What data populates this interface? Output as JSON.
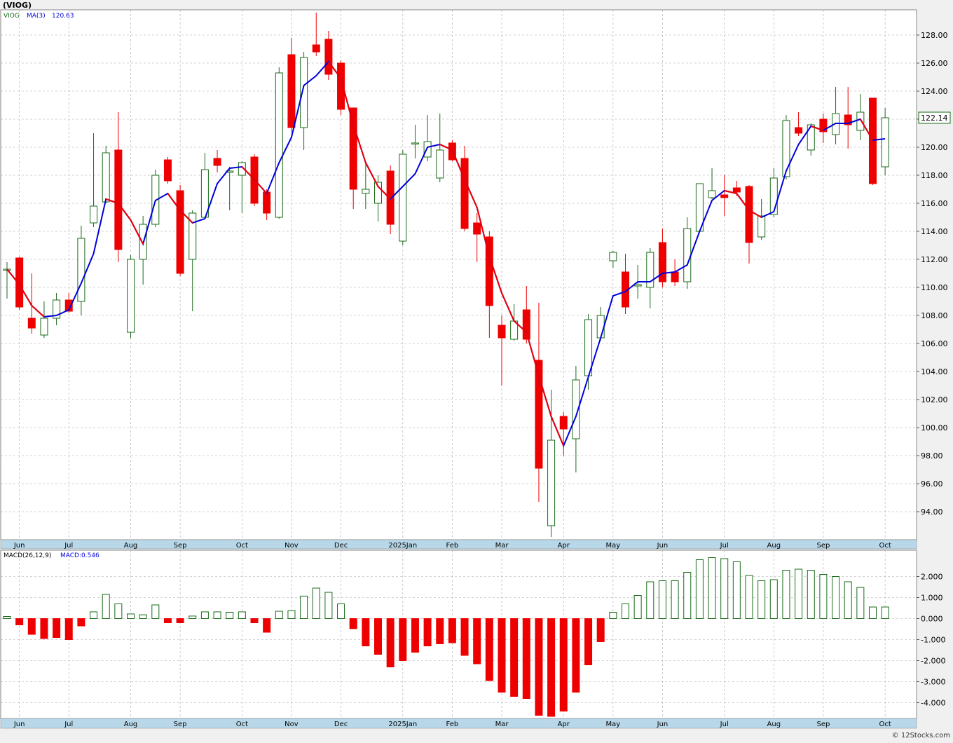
{
  "header": {
    "symbol_label": "(VIOG)",
    "watermark": "© 12Stocks.com"
  },
  "colors": {
    "up": "#1a6b1a",
    "down": "#ee0000",
    "ma_up": "#0000dd",
    "ma_down": "#ee0000",
    "grid": "#a8a8a8",
    "axis_band": "#b8d8ea",
    "panel_bg": "#ffffff"
  },
  "chart_data": [
    {
      "type": "candlestick",
      "legend": {
        "symbol": "VIOG",
        "ma_label": "MA(3)",
        "ma_value": "120.63"
      },
      "last_price_label": "122.14",
      "ylim": [
        92,
        129.8
      ],
      "y_ticks": [
        "94.00",
        "96.00",
        "98.00",
        "100.00",
        "102.00",
        "104.00",
        "106.00",
        "108.00",
        "110.00",
        "112.00",
        "114.00",
        "116.00",
        "118.00",
        "120.00",
        "122.00",
        "124.00",
        "126.00",
        "128.00"
      ],
      "x_labels": [
        {
          "label": "Jun",
          "index": 1
        },
        {
          "label": "Jul",
          "index": 5
        },
        {
          "label": "Aug",
          "index": 10
        },
        {
          "label": "Sep",
          "index": 14
        },
        {
          "label": "Oct",
          "index": 19
        },
        {
          "label": "Nov",
          "index": 23
        },
        {
          "label": "Dec",
          "index": 27
        },
        {
          "label": "2025Jan",
          "index": 32
        },
        {
          "label": "Feb",
          "index": 36
        },
        {
          "label": "Mar",
          "index": 40
        },
        {
          "label": "Apr",
          "index": 45
        },
        {
          "label": "May",
          "index": 49
        },
        {
          "label": "Jun",
          "index": 53
        },
        {
          "label": "Jul",
          "index": 58
        },
        {
          "label": "Aug",
          "index": 62
        },
        {
          "label": "Sep",
          "index": 66
        },
        {
          "label": "Oct",
          "index": 71
        }
      ],
      "candles": [
        {
          "o": 111.3,
          "h": 111.8,
          "l": 109.2,
          "c": 111.3
        },
        {
          "o": 112.1,
          "h": 112.2,
          "l": 108.4,
          "c": 108.6
        },
        {
          "o": 107.8,
          "h": 111.0,
          "l": 106.7,
          "c": 107.1
        },
        {
          "o": 106.6,
          "h": 109.0,
          "l": 106.4,
          "c": 107.8
        },
        {
          "o": 107.8,
          "h": 109.6,
          "l": 107.3,
          "c": 109.1
        },
        {
          "o": 109.1,
          "h": 109.6,
          "l": 108.2,
          "c": 108.3
        },
        {
          "o": 109.0,
          "h": 114.4,
          "l": 108.0,
          "c": 113.5
        },
        {
          "o": 114.6,
          "h": 121.0,
          "l": 114.3,
          "c": 115.8
        },
        {
          "o": 116.1,
          "h": 120.1,
          "l": 116.0,
          "c": 119.6
        },
        {
          "o": 119.8,
          "h": 122.5,
          "l": 111.8,
          "c": 112.7
        },
        {
          "o": 106.8,
          "h": 112.3,
          "l": 106.4,
          "c": 112.0
        },
        {
          "o": 112.0,
          "h": 115.1,
          "l": 110.2,
          "c": 114.5
        },
        {
          "o": 114.5,
          "h": 118.4,
          "l": 114.3,
          "c": 118.0
        },
        {
          "o": 119.1,
          "h": 119.3,
          "l": 117.4,
          "c": 117.6
        },
        {
          "o": 116.9,
          "h": 117.3,
          "l": 110.8,
          "c": 111.0
        },
        {
          "o": 112.0,
          "h": 115.5,
          "l": 108.3,
          "c": 115.3
        },
        {
          "o": 115.0,
          "h": 119.6,
          "l": 114.9,
          "c": 118.4
        },
        {
          "o": 119.2,
          "h": 119.8,
          "l": 118.2,
          "c": 118.7
        },
        {
          "o": 118.2,
          "h": 118.6,
          "l": 115.5,
          "c": 118.3
        },
        {
          "o": 118.0,
          "h": 119.0,
          "l": 115.3,
          "c": 118.9
        },
        {
          "o": 119.3,
          "h": 119.5,
          "l": 115.8,
          "c": 116.0
        },
        {
          "o": 116.8,
          "h": 117.0,
          "l": 114.8,
          "c": 115.3
        },
        {
          "o": 115.0,
          "h": 125.7,
          "l": 114.9,
          "c": 125.3
        },
        {
          "o": 126.6,
          "h": 127.8,
          "l": 121.1,
          "c": 121.4
        },
        {
          "o": 121.4,
          "h": 126.8,
          "l": 119.8,
          "c": 126.4
        },
        {
          "o": 127.3,
          "h": 129.6,
          "l": 126.5,
          "c": 126.8
        },
        {
          "o": 127.7,
          "h": 128.3,
          "l": 124.8,
          "c": 125.2
        },
        {
          "o": 126.0,
          "h": 126.2,
          "l": 122.3,
          "c": 122.7
        },
        {
          "o": 122.8,
          "h": 122.8,
          "l": 115.6,
          "c": 117.0
        },
        {
          "o": 116.7,
          "h": 118.9,
          "l": 115.6,
          "c": 117.0
        },
        {
          "o": 116.0,
          "h": 118.0,
          "l": 114.7,
          "c": 117.5
        },
        {
          "o": 118.3,
          "h": 118.7,
          "l": 113.8,
          "c": 114.5
        },
        {
          "o": 113.3,
          "h": 119.8,
          "l": 113.0,
          "c": 119.5
        },
        {
          "o": 120.3,
          "h": 121.6,
          "l": 119.2,
          "c": 120.3
        },
        {
          "o": 119.3,
          "h": 122.3,
          "l": 119.0,
          "c": 120.4
        },
        {
          "o": 117.8,
          "h": 122.4,
          "l": 117.5,
          "c": 119.8
        },
        {
          "o": 120.3,
          "h": 120.5,
          "l": 119.0,
          "c": 119.1
        },
        {
          "o": 119.2,
          "h": 120.1,
          "l": 114.0,
          "c": 114.2
        },
        {
          "o": 114.6,
          "h": 115.3,
          "l": 111.8,
          "c": 113.8
        },
        {
          "o": 113.6,
          "h": 114.0,
          "l": 106.4,
          "c": 108.7
        },
        {
          "o": 107.3,
          "h": 108.0,
          "l": 103.0,
          "c": 106.4
        },
        {
          "o": 106.3,
          "h": 108.8,
          "l": 106.2,
          "c": 107.6
        },
        {
          "o": 108.4,
          "h": 110.1,
          "l": 106.0,
          "c": 106.3
        },
        {
          "o": 104.8,
          "h": 108.9,
          "l": 94.7,
          "c": 97.1
        },
        {
          "o": 93.0,
          "h": 102.7,
          "l": 92.2,
          "c": 99.1
        },
        {
          "o": 100.8,
          "h": 101.1,
          "l": 98.0,
          "c": 99.9
        },
        {
          "o": 99.2,
          "h": 104.4,
          "l": 96.8,
          "c": 103.4
        },
        {
          "o": 103.7,
          "h": 108.1,
          "l": 102.7,
          "c": 107.7
        },
        {
          "o": 106.4,
          "h": 108.6,
          "l": 106.2,
          "c": 108.0
        },
        {
          "o": 111.9,
          "h": 112.6,
          "l": 111.4,
          "c": 112.5
        },
        {
          "o": 111.1,
          "h": 112.4,
          "l": 108.1,
          "c": 108.6
        },
        {
          "o": 110.1,
          "h": 111.6,
          "l": 109.2,
          "c": 110.2
        },
        {
          "o": 110.0,
          "h": 112.8,
          "l": 108.5,
          "c": 112.5
        },
        {
          "o": 113.2,
          "h": 114.2,
          "l": 110.0,
          "c": 110.4
        },
        {
          "o": 111.1,
          "h": 112.0,
          "l": 110.1,
          "c": 110.4
        },
        {
          "o": 110.4,
          "h": 115.0,
          "l": 109.9,
          "c": 114.2
        },
        {
          "o": 114.0,
          "h": 117.4,
          "l": 113.9,
          "c": 117.4
        },
        {
          "o": 116.4,
          "h": 118.5,
          "l": 116.3,
          "c": 116.9
        },
        {
          "o": 116.6,
          "h": 118.0,
          "l": 115.1,
          "c": 116.4
        },
        {
          "o": 117.1,
          "h": 117.6,
          "l": 116.5,
          "c": 116.8
        },
        {
          "o": 117.2,
          "h": 117.3,
          "l": 111.7,
          "c": 113.2
        },
        {
          "o": 113.6,
          "h": 116.3,
          "l": 113.4,
          "c": 115.1
        },
        {
          "o": 115.2,
          "h": 118.5,
          "l": 115.0,
          "c": 117.8
        },
        {
          "o": 117.9,
          "h": 122.3,
          "l": 117.7,
          "c": 121.9
        },
        {
          "o": 121.4,
          "h": 122.5,
          "l": 120.8,
          "c": 121.0
        },
        {
          "o": 119.8,
          "h": 121.7,
          "l": 119.4,
          "c": 121.6
        },
        {
          "o": 122.0,
          "h": 122.4,
          "l": 120.3,
          "c": 121.1
        },
        {
          "o": 120.9,
          "h": 124.3,
          "l": 120.2,
          "c": 122.4
        },
        {
          "o": 122.3,
          "h": 124.3,
          "l": 119.9,
          "c": 121.6
        },
        {
          "o": 121.2,
          "h": 123.8,
          "l": 120.5,
          "c": 122.5
        },
        {
          "o": 123.5,
          "h": 123.5,
          "l": 117.3,
          "c": 117.4
        },
        {
          "o": 118.6,
          "h": 122.8,
          "l": 118.0,
          "c": 122.1
        }
      ],
      "ma3": [
        111.3,
        110.2,
        108.7,
        107.9,
        108.0,
        108.4,
        110.3,
        112.4,
        116.3,
        116.0,
        114.8,
        113.1,
        116.2,
        116.7,
        115.5,
        114.6,
        114.9,
        117.4,
        118.5,
        118.6,
        117.7,
        116.7,
        118.9,
        120.7,
        124.4,
        125.1,
        126.1,
        124.9,
        121.6,
        118.9,
        117.2,
        116.3,
        117.2,
        118.1,
        120.0,
        120.2,
        119.8,
        117.7,
        115.7,
        112.2,
        109.6,
        107.6,
        106.8,
        103.7,
        100.8,
        98.7,
        100.8,
        103.6,
        106.4,
        109.4,
        109.7,
        110.4,
        110.4,
        111.0,
        111.1,
        111.6,
        114.0,
        116.2,
        116.9,
        116.7,
        115.5,
        115.0,
        115.4,
        118.3,
        120.2,
        121.5,
        121.2,
        121.7,
        121.7,
        122.0,
        120.5,
        120.6
      ]
    },
    {
      "type": "bar",
      "legend": {
        "name": "MACD(26,12,9)",
        "value_label": "MACD:0.546"
      },
      "ylim": [
        -4.75,
        3.25
      ],
      "y_ticks": [
        "-4.000",
        "-3.000",
        "-2.000",
        "-1.000",
        "0.000",
        "1.000",
        "2.000"
      ],
      "values": [
        0.1,
        -0.3,
        -0.75,
        -0.95,
        -0.9,
        -1.0,
        -0.35,
        0.32,
        1.15,
        0.7,
        0.22,
        0.18,
        0.65,
        -0.2,
        -0.2,
        0.12,
        0.32,
        0.32,
        0.3,
        0.32,
        -0.2,
        -0.65,
        0.35,
        0.38,
        1.07,
        1.45,
        1.25,
        0.7,
        -0.48,
        -1.3,
        -1.7,
        -2.3,
        -2.0,
        -1.6,
        -1.3,
        -1.2,
        -1.15,
        -1.75,
        -2.15,
        -2.95,
        -3.5,
        -3.7,
        -3.8,
        -4.6,
        -4.65,
        -4.4,
        -3.5,
        -2.2,
        -1.1,
        0.3,
        0.7,
        1.1,
        1.75,
        1.8,
        1.8,
        2.2,
        2.8,
        2.9,
        2.85,
        2.7,
        2.05,
        1.8,
        1.85,
        2.3,
        2.35,
        2.3,
        2.1,
        2.0,
        1.75,
        1.48,
        0.55,
        0.55
      ]
    }
  ]
}
